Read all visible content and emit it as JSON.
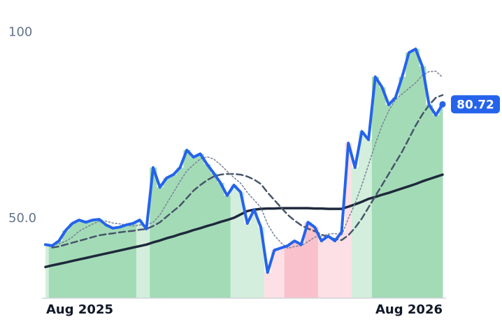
{
  "chart_data": {
    "type": "line",
    "categories": [
      "Aug 2025",
      null,
      null,
      null,
      null,
      null,
      null,
      null,
      null,
      null,
      null,
      null,
      null,
      null,
      null,
      null,
      null,
      null,
      null,
      null,
      null,
      null,
      null,
      null,
      null,
      null,
      null,
      null,
      null,
      null,
      null,
      null,
      null,
      null,
      null,
      null,
      null,
      null,
      null,
      null,
      null,
      null,
      null,
      null,
      null,
      null,
      null,
      null,
      null,
      null,
      null,
      null,
      null,
      null,
      null,
      null,
      null,
      null,
      null,
      "Aug 2026"
    ],
    "series": [
      {
        "color": "#2563eb",
        "line_style": "thick",
        "values": [
          43.0,
          42.7,
          44.0,
          46.8,
          48.7,
          49.6,
          49.0,
          49.6,
          49.8,
          48.3,
          47.4,
          47.7,
          48.3,
          48.7,
          49.6,
          47.2,
          63.7,
          58.4,
          60.9,
          61.8,
          63.7,
          68.4,
          66.5,
          67.4,
          64.6,
          62.2,
          59.6,
          56.2,
          59.0,
          57.1,
          48.7,
          52.4,
          47.7,
          35.5,
          41.5,
          42.1,
          42.7,
          44.0,
          43.0,
          49.0,
          47.7,
          44.0,
          45.3,
          44.0,
          46.4,
          70.3,
          63.7,
          73.4,
          71.2,
          88.1,
          85.3,
          80.6,
          82.5,
          88.1,
          94.6,
          95.6,
          90.9,
          80.6,
          77.8,
          80.72
        ]
      },
      {
        "color": "#7c8799",
        "line_style": "dotted",
        "values": [
          null,
          43.0,
          43.2,
          43.9,
          45.0,
          46.6,
          47.6,
          48.5,
          49.3,
          49.3,
          48.8,
          48.6,
          48.3,
          48.0,
          48.3,
          48.3,
          49.0,
          51,
          54,
          57,
          60,
          62.8,
          64.5,
          66,
          66.6,
          66,
          64.5,
          62.7,
          61,
          59.5,
          57,
          55,
          53,
          48.5,
          45.5,
          43.5,
          42,
          42.5,
          42.7,
          43.8,
          45,
          45.3,
          45.8,
          46,
          45.5,
          50,
          54,
          59,
          64.5,
          70,
          75,
          79,
          82,
          83.5,
          85,
          86.5,
          88.5,
          89.5,
          89.6,
          88.0
        ]
      },
      {
        "color": "#475569",
        "line_style": "dashed",
        "values": [
          null,
          42.2,
          42.5,
          43,
          43.5,
          44,
          44.5,
          45,
          45.5,
          45.8,
          46,
          46.3,
          46.5,
          46.7,
          47,
          47.2,
          48,
          49,
          50.5,
          52,
          53.5,
          55.5,
          57.5,
          59,
          60.3,
          61.3,
          61.8,
          62,
          62,
          61.8,
          61.3,
          60.5,
          59.3,
          57,
          55,
          53,
          51,
          49.5,
          48.2,
          47.3,
          46.6,
          45.7,
          45,
          44.5,
          44.2,
          45.5,
          47.5,
          50,
          53,
          56,
          59,
          62,
          65,
          68,
          71.5,
          75,
          78,
          80.5,
          82.5,
          83.2
        ]
      },
      {
        "color": "#1e293b",
        "line_style": "solid",
        "values": [
          37.0,
          37.4,
          37.8,
          38.2,
          38.6,
          39.0,
          39.4,
          39.8,
          40.2,
          40.6,
          41.0,
          41.4,
          41.8,
          42.2,
          42.6,
          43.0,
          43.6,
          44.1,
          44.7,
          45.2,
          45.8,
          46.3,
          46.9,
          47.4,
          48.0,
          48.5,
          49.1,
          49.6,
          50.2,
          51.1,
          52.0,
          52.4,
          52.6,
          52.7,
          52.7,
          52.8,
          52.8,
          52.8,
          52.8,
          52.8,
          52.7,
          52.7,
          52.6,
          52.6,
          52.6,
          53.2,
          53.8,
          54.5,
          55.3,
          55.8,
          56.4,
          56.9,
          57.5,
          58.1,
          58.7,
          59.3,
          60.0,
          60.6,
          61.2,
          61.8
        ]
      }
    ],
    "bar_colors": [
      "#d3eedc",
      "#a3dbb7",
      "#a3dbb7",
      "#a3dbb7",
      "#a3dbb7",
      "#a3dbb7",
      "#a3dbb7",
      "#a3dbb7",
      "#a3dbb7",
      "#a3dbb7",
      "#a3dbb7",
      "#a3dbb7",
      "#a3dbb7",
      "#a3dbb7",
      "#d3eedc",
      "#d3eedc",
      "#a3dbb7",
      "#a3dbb7",
      "#a3dbb7",
      "#a3dbb7",
      "#a3dbb7",
      "#a3dbb7",
      "#a3dbb7",
      "#a3dbb7",
      "#a3dbb7",
      "#a3dbb7",
      "#a3dbb7",
      "#a3dbb7",
      "#d3eedc",
      "#d3eedc",
      "#d3eedc",
      "#d3eedc",
      "#d3eedc",
      "#fde0e5",
      "#fde0e5",
      "#fde0e5",
      "#f9c1cb",
      "#f9c1cb",
      "#f9c1cb",
      "#f9c1cb",
      "#f9c1cb",
      "#fde0e5",
      "#fde0e5",
      "#fde0e5",
      "#fde0e5",
      "#fde0e5",
      "#d3eedc",
      "#d3eedc",
      "#d3eedc",
      "#a3dbb7",
      "#a3dbb7",
      "#a3dbb7",
      "#a3dbb7",
      "#a3dbb7",
      "#a3dbb7",
      "#a3dbb7",
      "#a3dbb7",
      "#a3dbb7",
      "#a3dbb7",
      "#a3dbb7"
    ],
    "ylim": [
      28.6,
      105
    ],
    "yticks": [
      {
        "value": 50,
        "label": "50.0"
      },
      100
    ],
    "grid": false
  }
}
